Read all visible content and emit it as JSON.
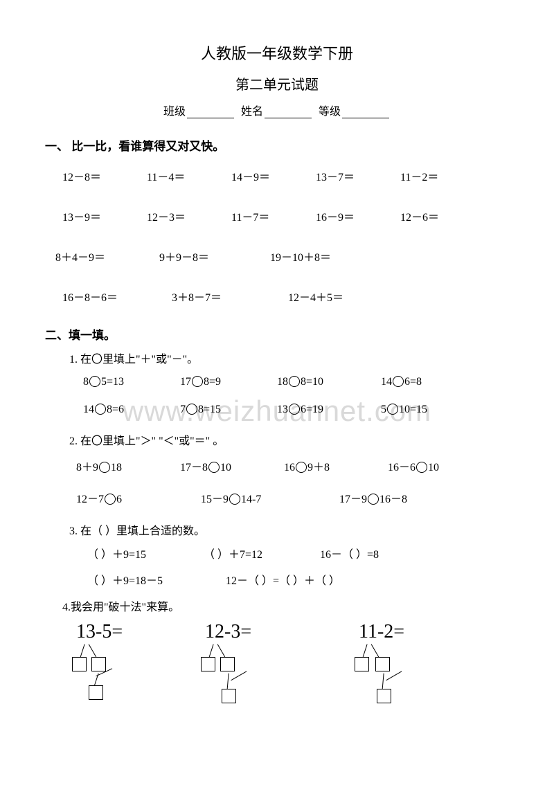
{
  "header": {
    "title1": "人教版一年级数学下册",
    "title2": "第二单元试题",
    "class_label": "班级",
    "name_label": "姓名",
    "grade_label": "等级"
  },
  "section1": {
    "title": "一、 比一比，看谁算得又对又快。",
    "row1": [
      "12－8＝",
      "11－4＝",
      "14－9＝",
      "13－7＝",
      "11－2＝"
    ],
    "row2": [
      "13－9＝",
      "12－3＝",
      "11－7＝",
      "16－9＝",
      "12－6＝"
    ],
    "row3": [
      "8＋4－9＝",
      "9＋9－8＝",
      "19－10＋8＝"
    ],
    "row4": [
      "16－8－6＝",
      "3＋8－7＝",
      "12－4＋5＝"
    ]
  },
  "section2": {
    "title": "二、填一填。",
    "item1": {
      "text": "1. 在〇里填上\"＋\"或\"－\"。",
      "row1": [
        [
          "8",
          "5=13"
        ],
        [
          "17",
          "8=9"
        ],
        [
          "18",
          "8=10"
        ],
        [
          "14",
          "6=8"
        ]
      ],
      "row2": [
        [
          "14",
          "8=6"
        ],
        [
          "7",
          "8=15"
        ],
        [
          "13",
          "6=19"
        ],
        [
          "5",
          "10=15"
        ]
      ]
    },
    "item2": {
      "text": "2. 在〇里填上\"＞\" \"＜\"或\"＝\" 。",
      "row1": [
        [
          "8＋9",
          "18"
        ],
        [
          "17－8",
          "10"
        ],
        [
          "16",
          "9＋8"
        ],
        [
          "16－6",
          "10"
        ]
      ],
      "row2": [
        [
          "12－7",
          "6"
        ],
        [
          "15－9",
          "14-7"
        ],
        [
          "17－9",
          "16－8"
        ]
      ]
    },
    "item3": {
      "text": "3.  在（  ）里填上合适的数。",
      "row1": [
        "（   ）＋9=15",
        "（   ）＋7=12",
        "16－（    ）=8"
      ],
      "row2": [
        "（   ）＋9=18－5",
        "12－（   ）=（   ）＋（   ）"
      ]
    },
    "item4": {
      "text": "4.我会用\"破十法\"来算。",
      "problems": [
        "13-5=",
        "12-3=",
        "11-2="
      ]
    }
  },
  "watermark": "www.weizhuannet.com"
}
